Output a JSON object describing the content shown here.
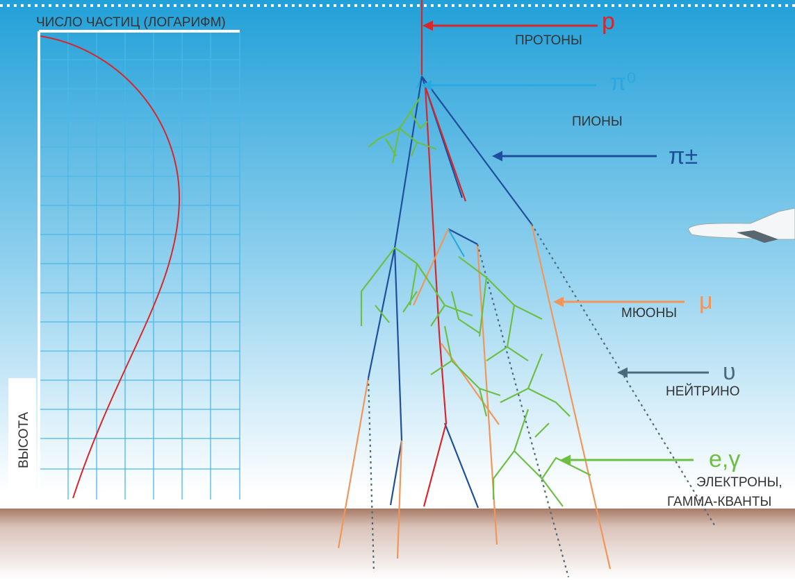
{
  "axes": {
    "x_label": "ЧИСЛО ЧАСТИЦ (ЛОГАРИФМ)",
    "y_label": "ВЫСОТА"
  },
  "particles": [
    {
      "symbol": "p",
      "name_lines": [
        "ПРОТОНЫ"
      ]
    },
    {
      "symbol": "π⁰",
      "name_lines": [
        "ПИОНЫ"
      ]
    },
    {
      "symbol": "π±",
      "name_lines": []
    },
    {
      "symbol": "μ",
      "name_lines": [
        "МЮОНЫ"
      ]
    },
    {
      "symbol": "υ",
      "name_lines": [
        "НЕЙТРИНО"
      ]
    },
    {
      "symbol": "e,γ",
      "name_lines": [
        "ЭЛЕКТРОНЫ,",
        "ГАММА-КВАНТЫ"
      ]
    }
  ]
}
